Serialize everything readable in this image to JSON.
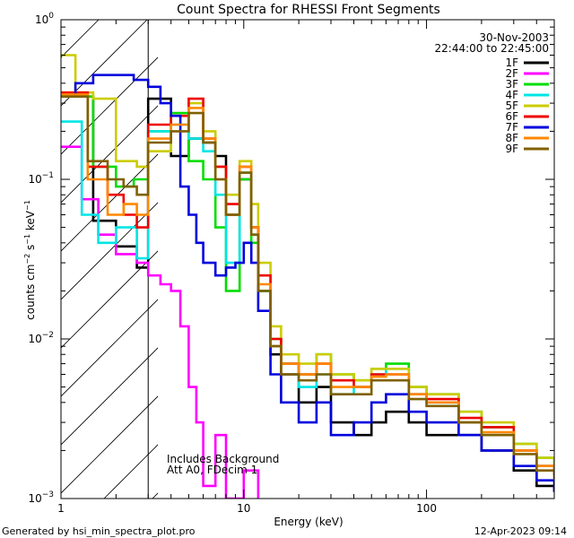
{
  "chart_data": {
    "type": "line",
    "title": "Count Spectra for RHESSI Front Segments",
    "xlabel": "Energy (keV)",
    "ylabel_parts": {
      "base": "counts cm",
      "e1": "−2",
      "mid": " s",
      "e2": "−1",
      "mid2": " keV",
      "e3": "−1"
    },
    "x_scale": "log",
    "y_scale": "log",
    "xlim": [
      1,
      500
    ],
    "ylim": [
      0.001,
      1
    ],
    "x_ticks": [
      {
        "value": 1,
        "label": "1"
      },
      {
        "value": 10,
        "label": "10"
      },
      {
        "value": 100,
        "label": "100"
      }
    ],
    "y_ticks": [
      {
        "value": 1,
        "base": "10",
        "exp": "0"
      },
      {
        "value": 0.1,
        "base": "10",
        "exp": "−1"
      },
      {
        "value": 0.01,
        "base": "10",
        "exp": "−2"
      },
      {
        "value": 0.001,
        "base": "10",
        "exp": "−3"
      }
    ],
    "shaded_region": {
      "x_from": 1,
      "x_to": 3
    },
    "date": "30-Nov-2003",
    "time_range": "22:44:00 to 22:45:00",
    "annotations": [
      "Includes Background",
      "Att A0, FDecim 1"
    ],
    "series": [
      {
        "name": "1F",
        "color": "#000000",
        "points": [
          [
            1.0,
            0.33
          ],
          [
            1.5,
            0.055
          ],
          [
            2.0,
            0.038
          ],
          [
            2.6,
            0.028
          ],
          [
            3.0,
            0.32
          ],
          [
            4.0,
            0.14
          ],
          [
            5.0,
            0.18
          ],
          [
            6.0,
            0.17
          ],
          [
            7.0,
            0.14
          ],
          [
            8.0,
            0.06
          ],
          [
            9.5,
            0.1
          ],
          [
            11.0,
            0.05
          ],
          [
            12.0,
            0.02
          ],
          [
            14.0,
            0.008
          ],
          [
            16.0,
            0.006
          ],
          [
            20.0,
            0.004
          ],
          [
            25.0,
            0.005
          ],
          [
            30.0,
            0.003
          ],
          [
            40.0,
            0.0025
          ],
          [
            50.0,
            0.003
          ],
          [
            60.0,
            0.0035
          ],
          [
            80.0,
            0.003
          ],
          [
            100.0,
            0.0025
          ],
          [
            150.0,
            0.0025
          ],
          [
            200.0,
            0.002
          ],
          [
            300.0,
            0.0015
          ],
          [
            400.0,
            0.0012
          ],
          [
            500.0,
            0.0011
          ]
        ]
      },
      {
        "name": "2F",
        "color": "#ff00ff",
        "points": [
          [
            1.0,
            0.16
          ],
          [
            1.3,
            0.075
          ],
          [
            1.6,
            0.045
          ],
          [
            2.0,
            0.034
          ],
          [
            2.6,
            0.03
          ],
          [
            3.0,
            0.025
          ],
          [
            3.5,
            0.022
          ],
          [
            4.0,
            0.02
          ],
          [
            4.5,
            0.012
          ],
          [
            5.0,
            0.005
          ],
          [
            5.5,
            0.003
          ],
          [
            6.0,
            0.0012
          ],
          [
            7.0,
            0.0025
          ],
          [
            8.0,
            0.001
          ],
          [
            10.0,
            0.0015
          ],
          [
            12.0,
            0.001
          ]
        ]
      },
      {
        "name": "3F",
        "color": "#00dd00",
        "points": [
          [
            1.0,
            0.33
          ],
          [
            1.5,
            0.12
          ],
          [
            2.0,
            0.09
          ],
          [
            2.5,
            0.1
          ],
          [
            3.0,
            0.2
          ],
          [
            4.0,
            0.26
          ],
          [
            5.0,
            0.13
          ],
          [
            6.0,
            0.1
          ],
          [
            7.0,
            0.05
          ],
          [
            8.0,
            0.02
          ],
          [
            9.5,
            0.1
          ],
          [
            11.0,
            0.04
          ],
          [
            12.0,
            0.02
          ],
          [
            14.0,
            0.01
          ],
          [
            16.0,
            0.007
          ],
          [
            20.0,
            0.006
          ],
          [
            25.0,
            0.008
          ],
          [
            30.0,
            0.006
          ],
          [
            40.0,
            0.0055
          ],
          [
            50.0,
            0.0065
          ],
          [
            60.0,
            0.007
          ],
          [
            80.0,
            0.005
          ],
          [
            100.0,
            0.0045
          ],
          [
            150.0,
            0.0035
          ],
          [
            200.0,
            0.0028
          ],
          [
            300.0,
            0.0022
          ],
          [
            400.0,
            0.0018
          ],
          [
            500.0,
            0.0015
          ]
        ]
      },
      {
        "name": "4F",
        "color": "#00e5e5",
        "points": [
          [
            1.0,
            0.23
          ],
          [
            1.3,
            0.06
          ],
          [
            1.6,
            0.04
          ],
          [
            2.0,
            0.05
          ],
          [
            2.6,
            0.032
          ],
          [
            3.0,
            0.2
          ],
          [
            4.0,
            0.22
          ],
          [
            5.0,
            0.18
          ],
          [
            6.0,
            0.15
          ],
          [
            7.0,
            0.08
          ],
          [
            8.0,
            0.03
          ],
          [
            9.5,
            0.11
          ],
          [
            11.0,
            0.045
          ],
          [
            12.0,
            0.02
          ],
          [
            14.0,
            0.009
          ],
          [
            16.0,
            0.007
          ],
          [
            20.0,
            0.005
          ],
          [
            25.0,
            0.006
          ],
          [
            30.0,
            0.0045
          ],
          [
            40.0,
            0.005
          ],
          [
            50.0,
            0.006
          ],
          [
            60.0,
            0.0065
          ],
          [
            80.0,
            0.0045
          ],
          [
            100.0,
            0.004
          ],
          [
            150.0,
            0.003
          ],
          [
            200.0,
            0.0025
          ],
          [
            300.0,
            0.002
          ],
          [
            400.0,
            0.0016
          ],
          [
            500.0,
            0.0014
          ]
        ]
      },
      {
        "name": "5F",
        "color": "#cccc00",
        "points": [
          [
            1.0,
            0.6
          ],
          [
            1.2,
            0.35
          ],
          [
            1.5,
            0.32
          ],
          [
            2.0,
            0.13
          ],
          [
            2.6,
            0.12
          ],
          [
            3.0,
            0.15
          ],
          [
            4.0,
            0.25
          ],
          [
            5.0,
            0.3
          ],
          [
            6.0,
            0.2
          ],
          [
            7.0,
            0.12
          ],
          [
            8.0,
            0.08
          ],
          [
            9.5,
            0.13
          ],
          [
            11.0,
            0.07
          ],
          [
            12.0,
            0.03
          ],
          [
            14.0,
            0.012
          ],
          [
            16.0,
            0.008
          ],
          [
            20.0,
            0.007
          ],
          [
            25.0,
            0.008
          ],
          [
            30.0,
            0.006
          ],
          [
            40.0,
            0.0055
          ],
          [
            50.0,
            0.0065
          ],
          [
            60.0,
            0.0065
          ],
          [
            80.0,
            0.005
          ],
          [
            100.0,
            0.0045
          ],
          [
            150.0,
            0.0035
          ],
          [
            200.0,
            0.003
          ],
          [
            300.0,
            0.0022
          ],
          [
            400.0,
            0.0018
          ],
          [
            500.0,
            0.0015
          ]
        ]
      },
      {
        "name": "6F",
        "color": "#ee0000",
        "points": [
          [
            1.0,
            0.35
          ],
          [
            1.4,
            0.12
          ],
          [
            1.8,
            0.08
          ],
          [
            2.2,
            0.06
          ],
          [
            2.6,
            0.05
          ],
          [
            3.0,
            0.22
          ],
          [
            4.0,
            0.25
          ],
          [
            5.0,
            0.32
          ],
          [
            6.0,
            0.18
          ],
          [
            7.0,
            0.12
          ],
          [
            8.0,
            0.07
          ],
          [
            9.5,
            0.12
          ],
          [
            11.0,
            0.05
          ],
          [
            12.0,
            0.025
          ],
          [
            14.0,
            0.01
          ],
          [
            16.0,
            0.007
          ],
          [
            20.0,
            0.006
          ],
          [
            25.0,
            0.007
          ],
          [
            30.0,
            0.0055
          ],
          [
            40.0,
            0.005
          ],
          [
            50.0,
            0.006
          ],
          [
            60.0,
            0.006
          ],
          [
            80.0,
            0.0045
          ],
          [
            100.0,
            0.0042
          ],
          [
            150.0,
            0.0032
          ],
          [
            200.0,
            0.0028
          ],
          [
            300.0,
            0.002
          ],
          [
            400.0,
            0.0016
          ],
          [
            500.0,
            0.0014
          ]
        ]
      },
      {
        "name": "7F",
        "color": "#0000dd",
        "points": [
          [
            1.0,
            0.33
          ],
          [
            1.2,
            0.4
          ],
          [
            1.5,
            0.45
          ],
          [
            2.0,
            0.45
          ],
          [
            2.5,
            0.42
          ],
          [
            3.0,
            0.38
          ],
          [
            3.5,
            0.3
          ],
          [
            4.0,
            0.25
          ],
          [
            4.5,
            0.09
          ],
          [
            5.0,
            0.06
          ],
          [
            5.5,
            0.04
          ],
          [
            6.0,
            0.03
          ],
          [
            7.0,
            0.025
          ],
          [
            8.0,
            0.028
          ],
          [
            9.0,
            0.03
          ],
          [
            10.0,
            0.04
          ],
          [
            11.0,
            0.03
          ],
          [
            12.0,
            0.015
          ],
          [
            14.0,
            0.006
          ],
          [
            16.0,
            0.004
          ],
          [
            20.0,
            0.003
          ],
          [
            25.0,
            0.004
          ],
          [
            30.0,
            0.0025
          ],
          [
            40.0,
            0.003
          ],
          [
            50.0,
            0.004
          ],
          [
            60.0,
            0.0045
          ],
          [
            80.0,
            0.0035
          ],
          [
            100.0,
            0.003
          ],
          [
            150.0,
            0.0025
          ],
          [
            200.0,
            0.002
          ],
          [
            300.0,
            0.0016
          ],
          [
            400.0,
            0.0013
          ],
          [
            500.0,
            0.0011
          ]
        ]
      },
      {
        "name": "8F",
        "color": "#ff8800",
        "points": [
          [
            1.0,
            0.34
          ],
          [
            1.4,
            0.1
          ],
          [
            1.8,
            0.06
          ],
          [
            2.2,
            0.07
          ],
          [
            2.6,
            0.06
          ],
          [
            3.0,
            0.18
          ],
          [
            4.0,
            0.22
          ],
          [
            5.0,
            0.28
          ],
          [
            6.0,
            0.18
          ],
          [
            7.0,
            0.1
          ],
          [
            8.0,
            0.06
          ],
          [
            9.5,
            0.12
          ],
          [
            11.0,
            0.05
          ],
          [
            12.0,
            0.022
          ],
          [
            14.0,
            0.009
          ],
          [
            16.0,
            0.007
          ],
          [
            20.0,
            0.006
          ],
          [
            25.0,
            0.007
          ],
          [
            30.0,
            0.005
          ],
          [
            40.0,
            0.005
          ],
          [
            50.0,
            0.0058
          ],
          [
            60.0,
            0.006
          ],
          [
            80.0,
            0.0045
          ],
          [
            100.0,
            0.004
          ],
          [
            150.0,
            0.003
          ],
          [
            200.0,
            0.0026
          ],
          [
            300.0,
            0.002
          ],
          [
            400.0,
            0.0016
          ],
          [
            500.0,
            0.0014
          ]
        ]
      },
      {
        "name": "9F",
        "color": "#806000",
        "points": [
          [
            1.0,
            0.33
          ],
          [
            1.4,
            0.13
          ],
          [
            1.8,
            0.1
          ],
          [
            2.2,
            0.09
          ],
          [
            2.6,
            0.08
          ],
          [
            3.0,
            0.17
          ],
          [
            4.0,
            0.2
          ],
          [
            5.0,
            0.26
          ],
          [
            6.0,
            0.17
          ],
          [
            7.0,
            0.1
          ],
          [
            8.0,
            0.06
          ],
          [
            9.5,
            0.11
          ],
          [
            11.0,
            0.045
          ],
          [
            12.0,
            0.02
          ],
          [
            14.0,
            0.009
          ],
          [
            16.0,
            0.006
          ],
          [
            20.0,
            0.0055
          ],
          [
            25.0,
            0.006
          ],
          [
            30.0,
            0.0045
          ],
          [
            40.0,
            0.0045
          ],
          [
            50.0,
            0.0055
          ],
          [
            60.0,
            0.0055
          ],
          [
            80.0,
            0.0042
          ],
          [
            100.0,
            0.0038
          ],
          [
            150.0,
            0.003
          ],
          [
            200.0,
            0.0025
          ],
          [
            300.0,
            0.0019
          ],
          [
            400.0,
            0.0015
          ],
          [
            500.0,
            0.0013
          ]
        ]
      }
    ]
  },
  "footer": {
    "generated_by": "Generated by hsi_min_spectra_plot.pro",
    "timestamp": "12-Apr-2023 09:14"
  }
}
